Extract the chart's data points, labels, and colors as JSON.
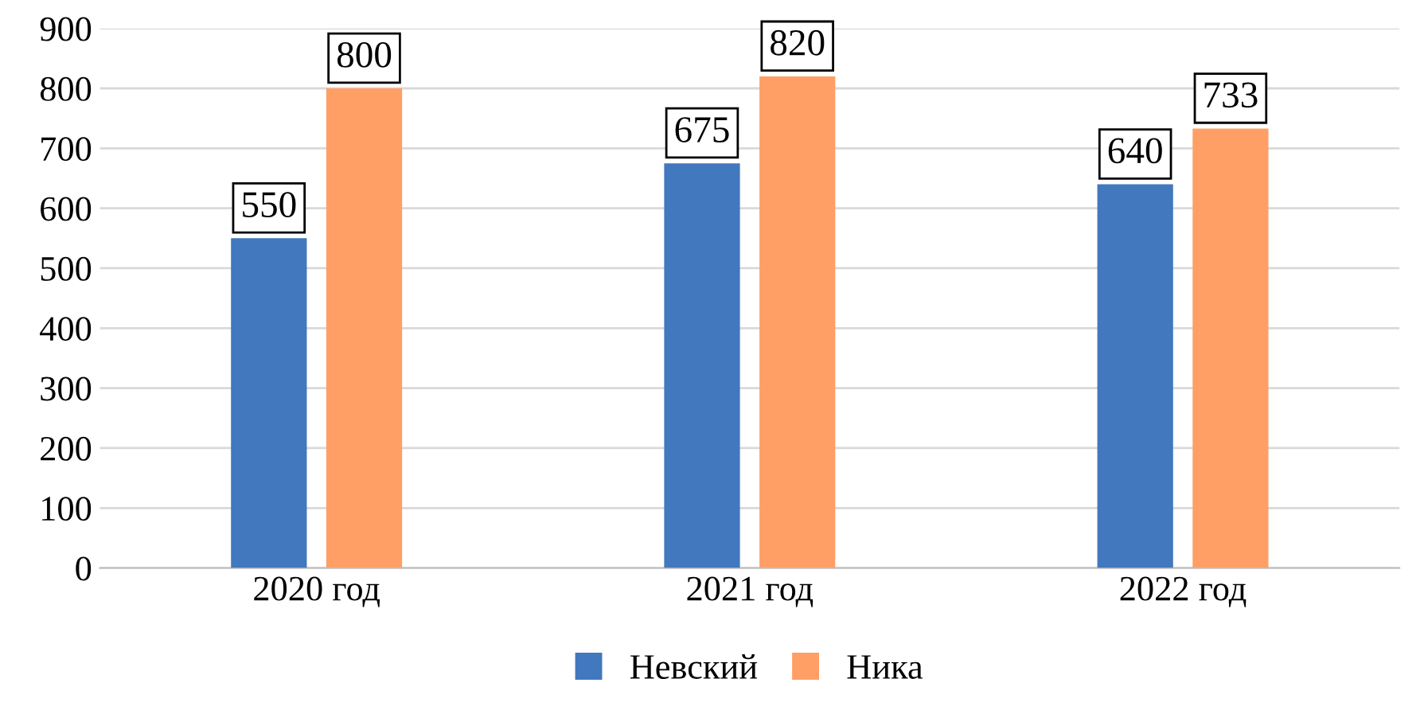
{
  "chart_data": {
    "type": "bar",
    "categories": [
      "2020 год",
      "2021 год",
      "2022 год"
    ],
    "series": [
      {
        "name": "Невский",
        "color": "#4178be",
        "values": [
          550,
          675,
          640
        ]
      },
      {
        "name": "Ника",
        "color": "#ff9f65",
        "values": [
          800,
          820,
          733
        ]
      }
    ],
    "ylim": [
      0,
      900
    ],
    "yticks": [
      0,
      100,
      200,
      300,
      400,
      500,
      600,
      700,
      800,
      900
    ],
    "grid": "y",
    "legend": "bottom",
    "data_labels": true
  }
}
